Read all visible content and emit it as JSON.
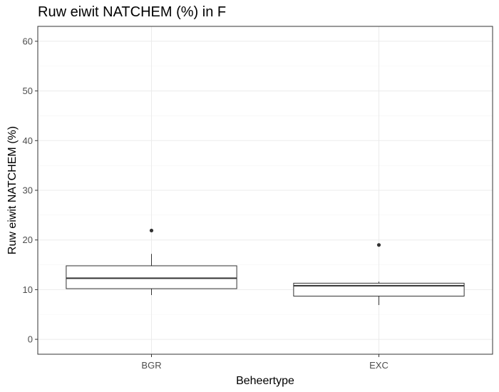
{
  "chart_data": {
    "type": "box",
    "title": "Ruw eiwit NATCHEM (%) in F",
    "xlabel": "Beheertype",
    "ylabel": "Ruw eiwit NATCHEM (%)",
    "ylim": [
      -3,
      63
    ],
    "yticks": [
      0,
      10,
      20,
      30,
      40,
      50,
      60
    ],
    "categories": [
      "BGR",
      "EXC"
    ],
    "boxes": [
      {
        "category": "BGR",
        "whisker_low": 8.9,
        "q1": 10.2,
        "median": 12.3,
        "q3": 14.8,
        "whisker_high": 17.2,
        "outliers": [
          21.9
        ]
      },
      {
        "category": "EXC",
        "whisker_low": 6.9,
        "q1": 8.7,
        "median": 10.8,
        "q3": 11.3,
        "whisker_high": 11.6,
        "outliers": [
          19.0
        ]
      }
    ],
    "grid": true,
    "colors": {
      "box_stroke": "#333333",
      "grid_major": "#ebebeb",
      "grid_minor": "#f5f5f5",
      "panel_border": "#333333"
    }
  }
}
